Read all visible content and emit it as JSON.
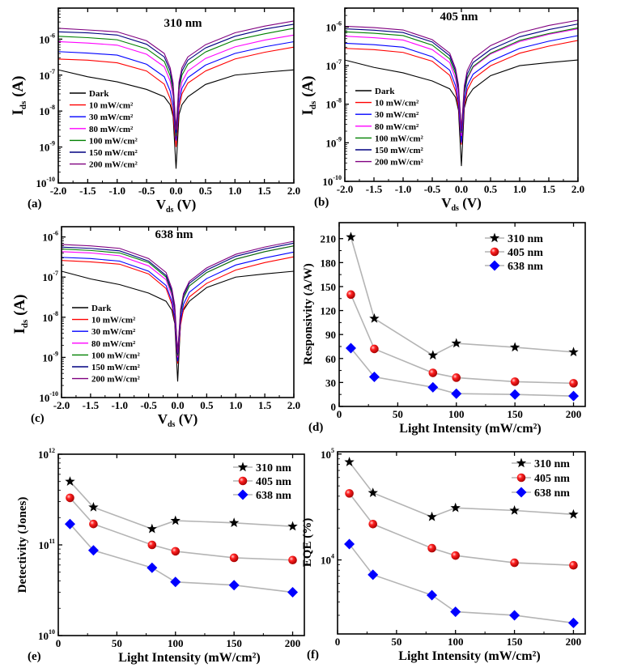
{
  "chart_data": [
    {
      "type": "line",
      "panel_label": "(a)",
      "title": "310 nm",
      "xlabel": {
        "main": "V",
        "sub": "ds",
        "unit": " (V)"
      },
      "ylabel": {
        "main": "I",
        "sub": "ds",
        "unit": " (A)"
      },
      "xlim": [
        -2.0,
        2.0
      ],
      "ylim": [
        1e-10,
        7.3e-06
      ],
      "yscale": "log",
      "xticks": [
        -2.0,
        -1.5,
        -1.0,
        -0.5,
        0.0,
        0.5,
        1.0,
        1.5,
        2.0
      ],
      "xtick_labels": [
        "-2.0",
        "-1.5",
        "-1.0",
        "-0.5",
        "0.0",
        "0.5",
        "1.0",
        "1.5",
        "2.0"
      ],
      "ytick_exponents": [
        -10,
        -9,
        -8,
        -7,
        -6
      ],
      "legend_position": "lower-left",
      "x": [
        -2,
        -1.5,
        -1,
        -0.5,
        -0.2,
        -0.1,
        -0.05,
        0,
        0.05,
        0.1,
        0.2,
        0.5,
        1,
        1.5,
        2
      ],
      "series": [
        {
          "name": "Dark",
          "color": "#000000",
          "values": [
            1.4e-07,
            9e-08,
            6.5e-08,
            4e-08,
            2.5e-08,
            1.5e-08,
            7e-09,
            2.5e-10,
            8e-09,
            1.5e-08,
            2.5e-08,
            5.5e-08,
            1e-07,
            1.2e-07,
            1.4e-07
          ]
        },
        {
          "name": "10 mW/cm²",
          "color": "#ff0000",
          "values": [
            2.8e-07,
            2.6e-07,
            2.2e-07,
            1.3e-07,
            5.6e-08,
            2.2e-08,
            8.4e-09,
            1e-09,
            1.2e-08,
            3e-08,
            6e-08,
            1.3e-07,
            2.8e-07,
            4.3e-07,
            6e-07
          ]
        },
        {
          "name": "30 mW/cm²",
          "color": "#0000ff",
          "values": [
            4.5e-07,
            4.1e-07,
            3.6e-07,
            2e-07,
            9e-08,
            3.6e-08,
            1.4e-08,
            1.5e-09,
            1.7e-08,
            4.3e-08,
            8.5e-08,
            1.9e-07,
            4e-07,
            6.1e-07,
            8.5e-07
          ]
        },
        {
          "name": "80 mW/cm²",
          "color": "#ff00ff",
          "values": [
            8.5e-07,
            7.8e-07,
            6.8e-07,
            3.8e-07,
            1.7e-07,
            6.8e-08,
            2.6e-08,
            2e-09,
            2.6e-08,
            6.5e-08,
            1.3e-07,
            2.9e-07,
            6.1e-07,
            9.4e-07,
            1.3e-06
          ]
        },
        {
          "name": "100 mW/cm²",
          "color": "#008000",
          "values": [
            1.2e-06,
            1.1e-06,
            9.6e-07,
            5.4e-07,
            2.4e-07,
            9.6e-08,
            3.6e-08,
            2e-09,
            4e-08,
            1e-07,
            2e-07,
            4.4e-07,
            9.4e-07,
            1.4e-06,
            2e-06
          ]
        },
        {
          "name": "150 mW/cm²",
          "color": "#000080",
          "values": [
            1.6e-06,
            1.5e-06,
            1.3e-06,
            7.2e-07,
            3.2e-07,
            1.3e-07,
            4.8e-08,
            2.5e-09,
            5.2e-08,
            1.3e-07,
            2.6e-07,
            5.7e-07,
            1.2e-06,
            1.9e-06,
            2.6e-06
          ]
        },
        {
          "name": "200 mW/cm²",
          "color": "#800080",
          "values": [
            2e-06,
            1.8e-06,
            1.6e-06,
            9e-07,
            4e-07,
            1.6e-07,
            6e-08,
            3e-09,
            6.4e-08,
            1.6e-07,
            3.2e-07,
            7e-07,
            1.5e-06,
            2.3e-06,
            3.2e-06
          ]
        }
      ]
    },
    {
      "type": "line",
      "panel_label": "(b)",
      "title": "405 nm",
      "xlabel": {
        "main": "V",
        "sub": "ds",
        "unit": " (V)"
      },
      "ylabel": {
        "main": "I",
        "sub": "ds",
        "unit": " (A)"
      },
      "xlim": [
        -2.0,
        2.0
      ],
      "ylim": [
        1e-10,
        3.1e-06
      ],
      "yscale": "log",
      "xticks": [
        -2.0,
        -1.5,
        -1.0,
        -0.5,
        0.0,
        0.5,
        1.0,
        1.5,
        2.0
      ],
      "xtick_labels": [
        "-2.0",
        "-1.5",
        "-1.0",
        "-0.5",
        "0.0",
        "0.5",
        "1.0",
        "1.5",
        "2.0"
      ],
      "ytick_exponents": [
        -10,
        -9,
        -8,
        -7,
        -6
      ],
      "legend_position": "lower-left",
      "x": [
        -2,
        -1.5,
        -1,
        -0.5,
        -0.2,
        -0.1,
        -0.05,
        0,
        0.05,
        0.1,
        0.2,
        0.5,
        1,
        1.5,
        2
      ],
      "series": [
        {
          "name": "Dark",
          "color": "#000000",
          "values": [
            1.4e-07,
            9e-08,
            6.5e-08,
            4e-08,
            2.5e-08,
            1.5e-08,
            7e-09,
            2.5e-10,
            8e-09,
            1.5e-08,
            2.5e-08,
            5.5e-08,
            1e-07,
            1.2e-07,
            1.4e-07
          ]
        },
        {
          "name": "10 mW/cm²",
          "color": "#ff0000",
          "values": [
            2.8e-07,
            2.6e-07,
            2.2e-07,
            1.3e-07,
            5.6e-08,
            2.2e-08,
            8.4e-09,
            9e-10,
            9e-09,
            2.3e-08,
            4.5e-08,
            9.9e-08,
            2.1e-07,
            3.2e-07,
            4.5e-07
          ]
        },
        {
          "name": "30 mW/cm²",
          "color": "#0000ff",
          "values": [
            3.8e-07,
            3.5e-07,
            3e-07,
            1.7e-07,
            7.6e-08,
            3e-08,
            1.1e-08,
            1e-09,
            1.2e-08,
            3e-08,
            6e-08,
            1.3e-07,
            2.8e-07,
            4.3e-07,
            6e-07
          ]
        },
        {
          "name": "80 mW/cm²",
          "color": "#ff00ff",
          "values": [
            5.8e-07,
            5.3e-07,
            4.6e-07,
            2.6e-07,
            1.2e-07,
            4.6e-08,
            1.7e-08,
            1.5e-09,
            1.8e-08,
            4.5e-08,
            9e-08,
            2e-07,
            4.2e-07,
            6.5e-07,
            9e-07
          ]
        },
        {
          "name": "100 mW/cm²",
          "color": "#008000",
          "values": [
            7.5e-07,
            6.9e-07,
            6e-07,
            3.4e-07,
            1.5e-07,
            6e-08,
            2.3e-08,
            1.8e-09,
            1.9e-08,
            4.8e-08,
            9.5e-08,
            2.1e-07,
            4.5e-07,
            6.8e-07,
            9.5e-07
          ]
        },
        {
          "name": "150 mW/cm²",
          "color": "#000080",
          "values": [
            9e-07,
            8.3e-07,
            7.2e-07,
            4.1e-07,
            1.8e-07,
            7.2e-08,
            2.7e-08,
            2e-09,
            2.4e-08,
            6e-08,
            1.2e-07,
            2.6e-07,
            5.6e-07,
            8.6e-07,
            1.2e-06
          ]
        },
        {
          "name": "200 mW/cm²",
          "color": "#800080",
          "values": [
            1.05e-06,
            9.7e-07,
            8.4e-07,
            4.7e-07,
            2.1e-07,
            8.4e-08,
            3.2e-08,
            2.2e-09,
            3e-08,
            7.5e-08,
            1.5e-07,
            3.3e-07,
            7.1e-07,
            1.1e-06,
            1.5e-06
          ]
        }
      ]
    },
    {
      "type": "line",
      "panel_label": "(c)",
      "title": "638 nm",
      "xlabel": {
        "main": "V",
        "sub": "ds",
        "unit": " (V)"
      },
      "ylabel": {
        "main": "I",
        "sub": "ds",
        "unit": " (A)"
      },
      "xlim": [
        -2.0,
        2.0
      ],
      "ylim": [
        1e-10,
        1.8e-06
      ],
      "yscale": "log",
      "xticks": [
        -2.0,
        -1.5,
        -1.0,
        -0.5,
        0.0,
        0.5,
        1.0,
        1.5,
        2.0
      ],
      "xtick_labels": [
        "-2.0",
        "-1.5",
        "-1.0",
        "-0.5",
        "0.0",
        "0.5",
        "1.0",
        "1.5",
        "2.0"
      ],
      "ytick_exponents": [
        -10,
        -9,
        -8,
        -7,
        -6
      ],
      "legend_position": "lower-left",
      "x": [
        -2,
        -1.5,
        -1,
        -0.5,
        -0.2,
        -0.1,
        -0.05,
        0,
        0.05,
        0.1,
        0.2,
        0.5,
        1,
        1.5,
        2
      ],
      "series": [
        {
          "name": "Dark",
          "color": "#000000",
          "values": [
            1.4e-07,
            9e-08,
            6.5e-08,
            4e-08,
            2.5e-08,
            1.5e-08,
            7e-09,
            2.5e-10,
            8e-09,
            1.5e-08,
            2.5e-08,
            5.5e-08,
            1e-07,
            1.2e-07,
            1.4e-07
          ]
        },
        {
          "name": "10 mW/cm²",
          "color": "#ff0000",
          "values": [
            2.6e-07,
            2.4e-07,
            2.1e-07,
            1.2e-07,
            5.2e-08,
            2.1e-08,
            7.8e-09,
            7e-10,
            6.4e-09,
            1.6e-08,
            3.2e-08,
            7e-08,
            1.5e-07,
            2.3e-07,
            3.2e-07
          ]
        },
        {
          "name": "30 mW/cm²",
          "color": "#0000ff",
          "values": [
            3.1e-07,
            2.9e-07,
            2.5e-07,
            1.4e-07,
            6.2e-08,
            2.5e-08,
            9.3e-09,
            8e-10,
            8.4e-09,
            2.1e-08,
            4.2e-08,
            9.2e-08,
            2e-07,
            3e-07,
            4.2e-07
          ]
        },
        {
          "name": "80 mW/cm²",
          "color": "#ff00ff",
          "values": [
            4.3e-07,
            4e-07,
            3.4e-07,
            1.9e-07,
            8.6e-08,
            3.4e-08,
            1.3e-08,
            1e-09,
            1.2e-08,
            3e-08,
            6e-08,
            1.3e-07,
            2.8e-07,
            4.3e-07,
            6e-07
          ]
        },
        {
          "name": "100 mW/cm²",
          "color": "#008000",
          "values": [
            5e-07,
            4.6e-07,
            4e-07,
            2.3e-07,
            1e-07,
            4e-08,
            1.5e-08,
            1.1e-09,
            1.2e-08,
            3e-08,
            6e-08,
            1.3e-07,
            2.8e-07,
            4.3e-07,
            6e-07
          ]
        },
        {
          "name": "150 mW/cm²",
          "color": "#000080",
          "values": [
            5.6e-07,
            5.2e-07,
            4.5e-07,
            2.5e-07,
            1.1e-07,
            4.5e-08,
            1.7e-08,
            1.2e-09,
            1.4e-08,
            3.5e-08,
            7e-08,
            1.5e-07,
            3.3e-07,
            5e-07,
            7e-07
          ]
        },
        {
          "name": "200 mW/cm²",
          "color": "#800080",
          "values": [
            6.5e-07,
            6e-07,
            5.2e-07,
            2.9e-07,
            1.3e-07,
            5.2e-08,
            2e-08,
            1.3e-09,
            1.6e-08,
            3.9e-08,
            7.8e-08,
            1.7e-07,
            3.7e-07,
            5.6e-07,
            7.8e-07
          ]
        }
      ]
    },
    {
      "type": "line",
      "markers": true,
      "panel_label": "(d)",
      "title": "",
      "xlabel": "Light Intensity (mW/cm²)",
      "ylabel": "Responsivity (A/W)",
      "xlim": [
        0,
        210
      ],
      "ylim": [
        0,
        230
      ],
      "yscale": "linear",
      "xticks": [
        0,
        50,
        100,
        150,
        200
      ],
      "xtick_labels": [
        "0",
        "50",
        "100",
        "150",
        "200"
      ],
      "yticks": [
        0,
        30,
        60,
        90,
        120,
        150,
        180,
        210
      ],
      "ytick_labels": [
        "0",
        "30",
        "60",
        "90",
        "120",
        "150",
        "180",
        "210"
      ],
      "legend_position": "top-right",
      "x": [
        10,
        30,
        80,
        100,
        150,
        200
      ],
      "series": [
        {
          "name": "310 nm",
          "marker": "star",
          "color": "#000000",
          "values": [
            212,
            110,
            64,
            79,
            74,
            68
          ]
        },
        {
          "name": "405 nm",
          "marker": "circle",
          "color": "#ff0000",
          "values": [
            140,
            72,
            42,
            36,
            31,
            29
          ]
        },
        {
          "name": "638 nm",
          "marker": "diamond",
          "color": "#0000ff",
          "values": [
            73,
            37,
            24,
            16,
            15,
            13
          ]
        }
      ]
    },
    {
      "type": "line",
      "markers": true,
      "panel_label": "(e)",
      "title": "",
      "xlabel": "Light Intensity (mW/cm²)",
      "ylabel": "Detectivity (Jones)",
      "xlim": [
        0,
        210
      ],
      "ylim": [
        10000000000.0,
        1000000000000.0
      ],
      "yscale": "log",
      "xticks": [
        0,
        50,
        100,
        150,
        200
      ],
      "xtick_labels": [
        "0",
        "50",
        "100",
        "150",
        "200"
      ],
      "ytick_exponents": [
        10,
        11,
        12
      ],
      "legend_position": "top-right",
      "x": [
        10,
        30,
        80,
        100,
        150,
        200
      ],
      "series": [
        {
          "name": "310 nm",
          "marker": "star",
          "color": "#000000",
          "values": [
            500000000000.0,
            260000000000.0,
            150000000000.0,
            185000000000.0,
            175000000000.0,
            160000000000.0
          ]
        },
        {
          "name": "405 nm",
          "marker": "circle",
          "color": "#ff0000",
          "values": [
            330000000000.0,
            170000000000.0,
            100000000000.0,
            85000000000.0,
            72000000000.0,
            68000000000.0
          ]
        },
        {
          "name": "638 nm",
          "marker": "diamond",
          "color": "#0000ff",
          "values": [
            170000000000.0,
            87000000000.0,
            56000000000.0,
            39000000000.0,
            36000000000.0,
            30000000000.0
          ]
        }
      ]
    },
    {
      "type": "line",
      "markers": true,
      "panel_label": "(f)",
      "title": "",
      "xlabel": "Light Intensity (mW/cm²)",
      "ylabel": "EQE (%)",
      "xlim": [
        0,
        210
      ],
      "ylim": [
        2000,
        105000
      ],
      "yscale": "log",
      "xticks": [
        0,
        50,
        100,
        150,
        200
      ],
      "xtick_labels": [
        "0",
        "50",
        "100",
        "150",
        "200"
      ],
      "ytick_exponents": [
        4,
        5
      ],
      "legend_position": "top-right",
      "x": [
        10,
        30,
        80,
        100,
        150,
        200
      ],
      "series": [
        {
          "name": "310 nm",
          "marker": "star",
          "color": "#000000",
          "values": [
            84000,
            43000,
            25500,
            31000,
            29300,
            26900
          ]
        },
        {
          "name": "405 nm",
          "marker": "circle",
          "color": "#ff0000",
          "values": [
            42500,
            21800,
            12900,
            11000,
            9400,
            8900
          ]
        },
        {
          "name": "638 nm",
          "marker": "diamond",
          "color": "#0000ff",
          "values": [
            14100,
            7250,
            4650,
            3240,
            3000,
            2540
          ]
        }
      ]
    }
  ]
}
